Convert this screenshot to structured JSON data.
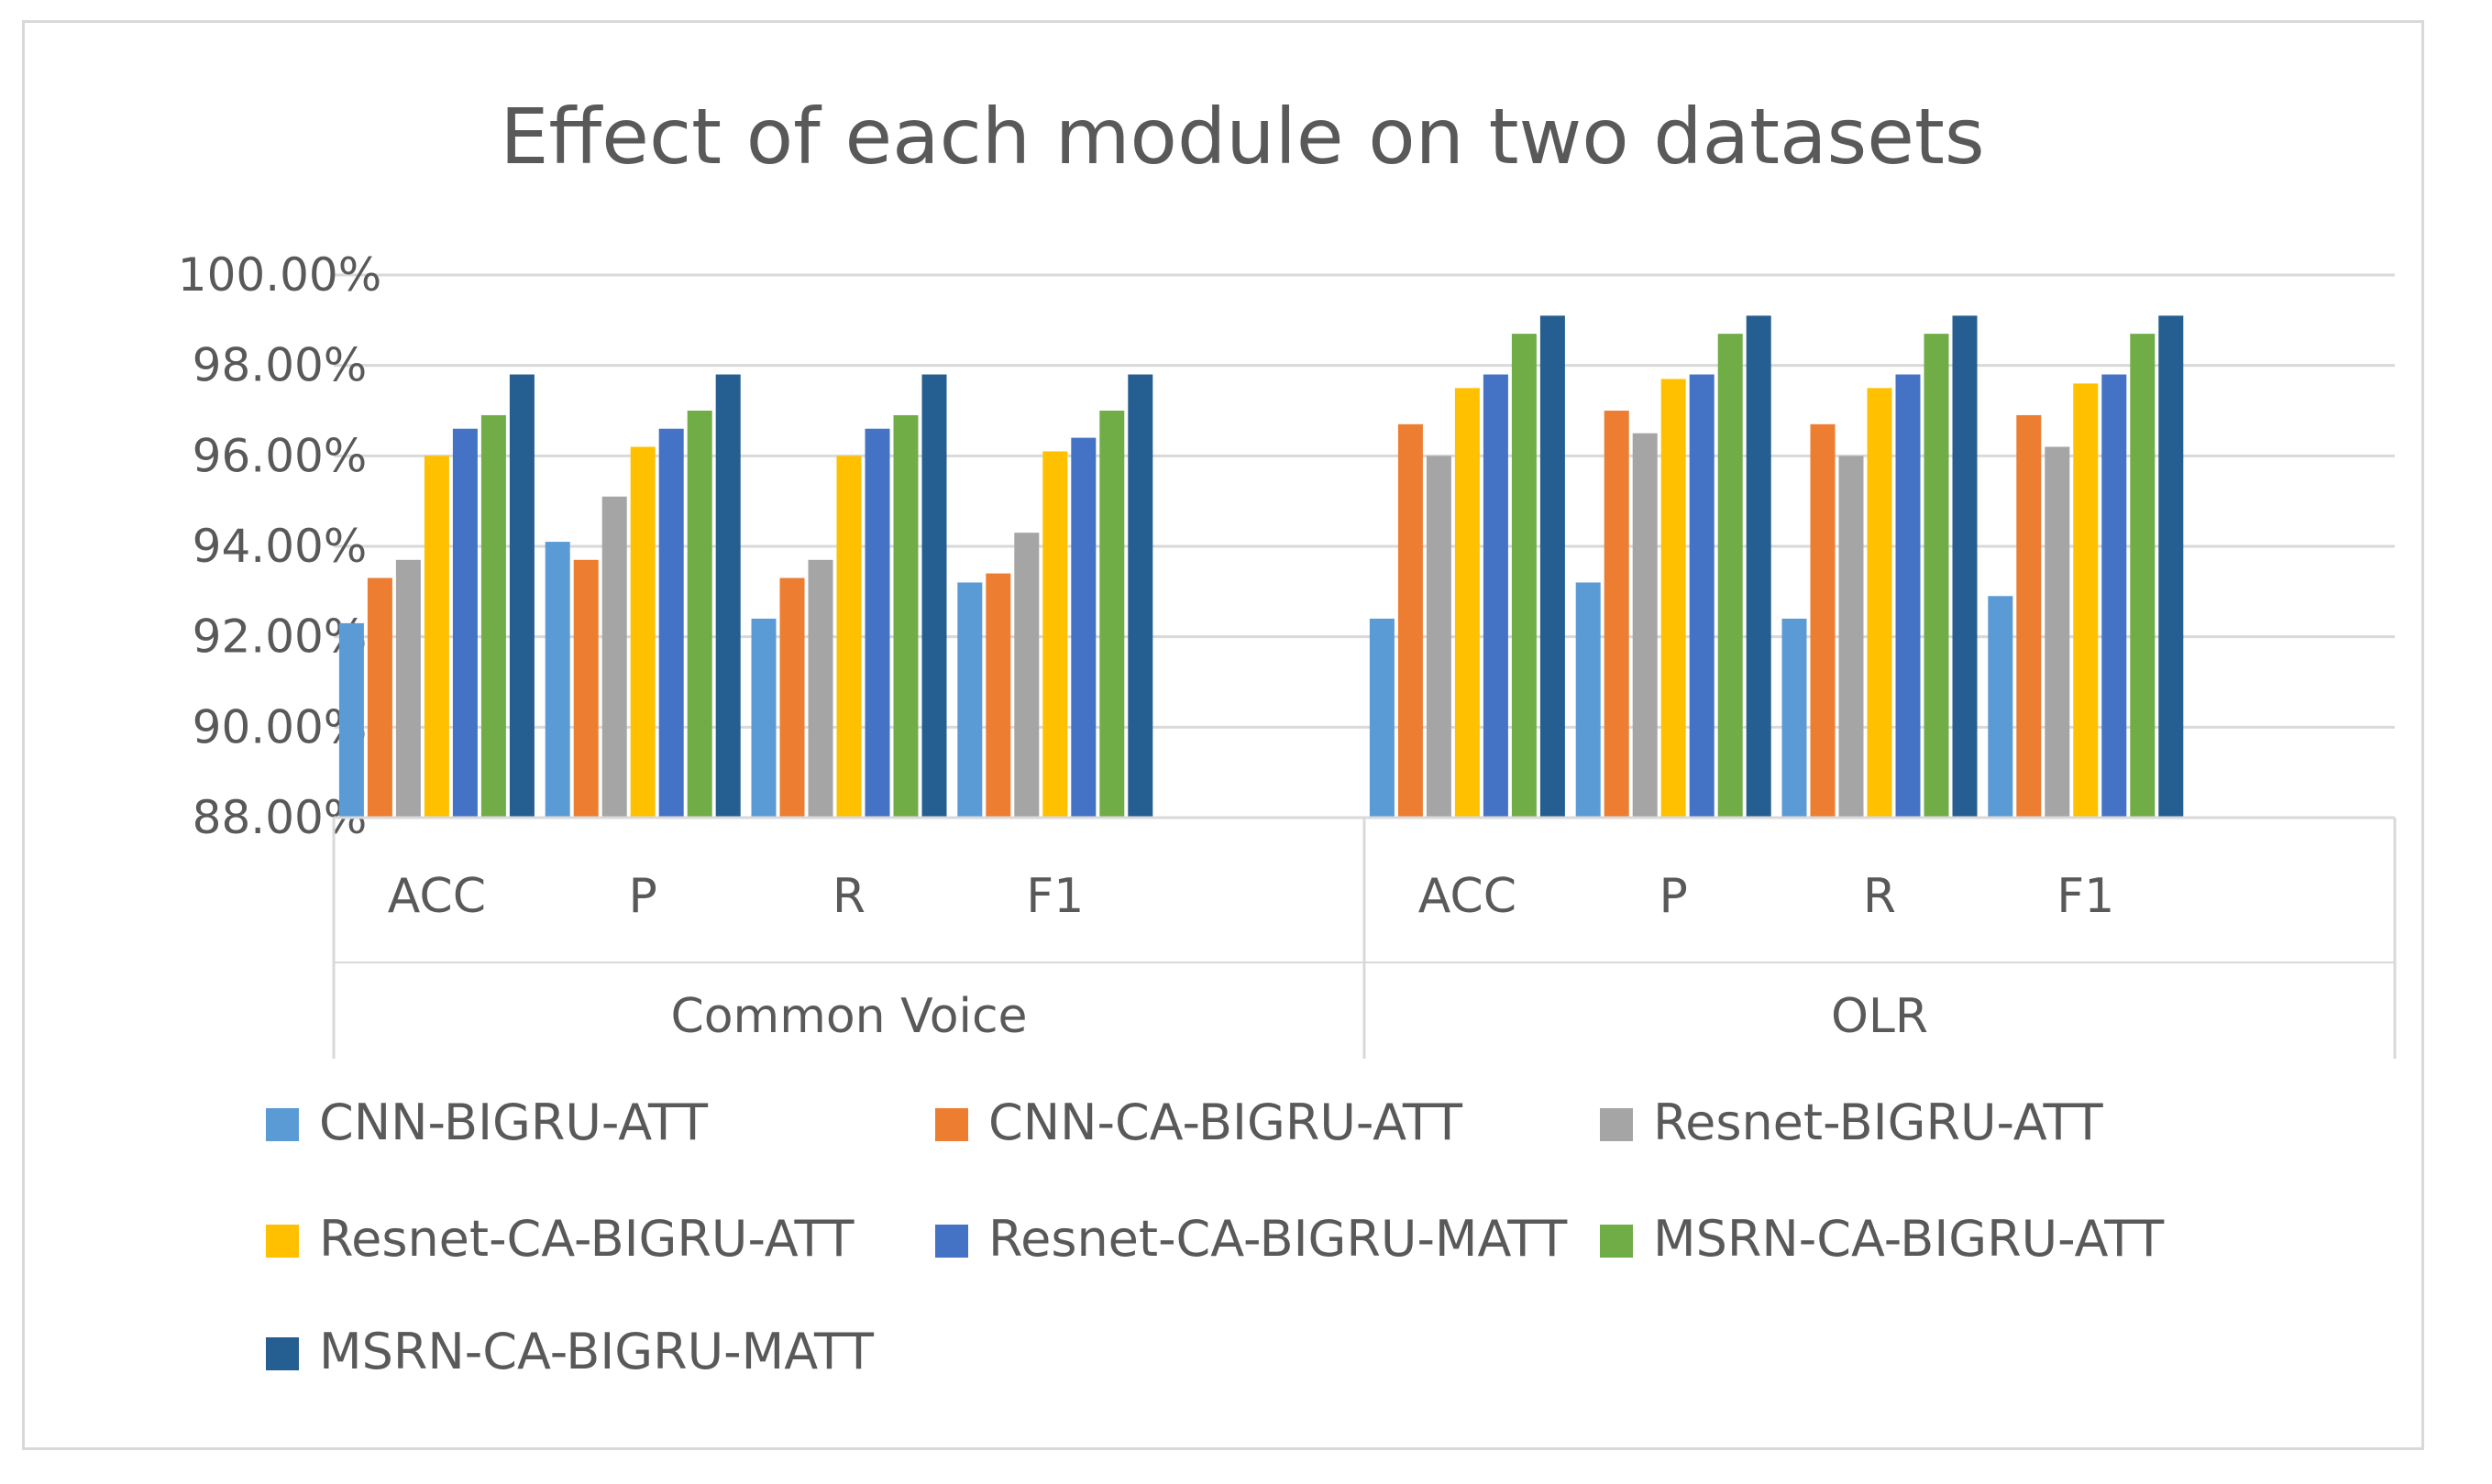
{
  "chart_data": {
    "type": "bar",
    "title": "Effect of each module on two datasets",
    "xlabel": "",
    "ylabel": "",
    "ylim": [
      0.88,
      1.0
    ],
    "ytick_values": [
      0.88,
      0.9,
      0.92,
      0.94,
      0.96,
      0.98,
      1.0
    ],
    "ytick_labels": [
      "88.00%",
      "90.00%",
      "92.00%",
      "94.00%",
      "96.00%",
      "98.00%",
      "100.00%"
    ],
    "groups": [
      {
        "name": "Common Voice",
        "categories": [
          "ACC",
          "P",
          "R",
          "F1"
        ]
      },
      {
        "name": "OLR",
        "categories": [
          "ACC",
          "P",
          "R",
          "F1"
        ]
      }
    ],
    "grid": true,
    "legend_position": "bottom",
    "series": [
      {
        "name": "CNN-BIGRU-ATT",
        "color": "#5b9bd5",
        "values": [
          0.923,
          0.941,
          0.924,
          0.932,
          0.924,
          0.932,
          0.924,
          0.929
        ]
      },
      {
        "name": "CNN-CA-BIGRU-ATT",
        "color": "#ed7d31",
        "values": [
          0.933,
          0.937,
          0.933,
          0.934,
          0.967,
          0.97,
          0.967,
          0.969
        ]
      },
      {
        "name": "Resnet-BIGRU-ATT",
        "color": "#a5a5a5",
        "values": [
          0.937,
          0.951,
          0.937,
          0.943,
          0.96,
          0.965,
          0.96,
          0.962
        ]
      },
      {
        "name": "Resnet-CA-BIGRU-ATT",
        "color": "#ffc000",
        "values": [
          0.96,
          0.962,
          0.96,
          0.961,
          0.975,
          0.977,
          0.975,
          0.976
        ]
      },
      {
        "name": "Resnet-CA-BIGRU-MATT",
        "color": "#4472c4",
        "values": [
          0.966,
          0.966,
          0.966,
          0.964,
          0.978,
          0.978,
          0.978,
          0.978
        ]
      },
      {
        "name": "MSRN-CA-BIGRU-ATT",
        "color": "#70ad47",
        "values": [
          0.969,
          0.97,
          0.969,
          0.97,
          0.987,
          0.987,
          0.987,
          0.987
        ]
      },
      {
        "name": "MSRN-CA-BIGRU-MATT",
        "color": "#255e91",
        "values": [
          0.978,
          0.978,
          0.978,
          0.978,
          0.991,
          0.991,
          0.991,
          0.991
        ]
      }
    ]
  }
}
